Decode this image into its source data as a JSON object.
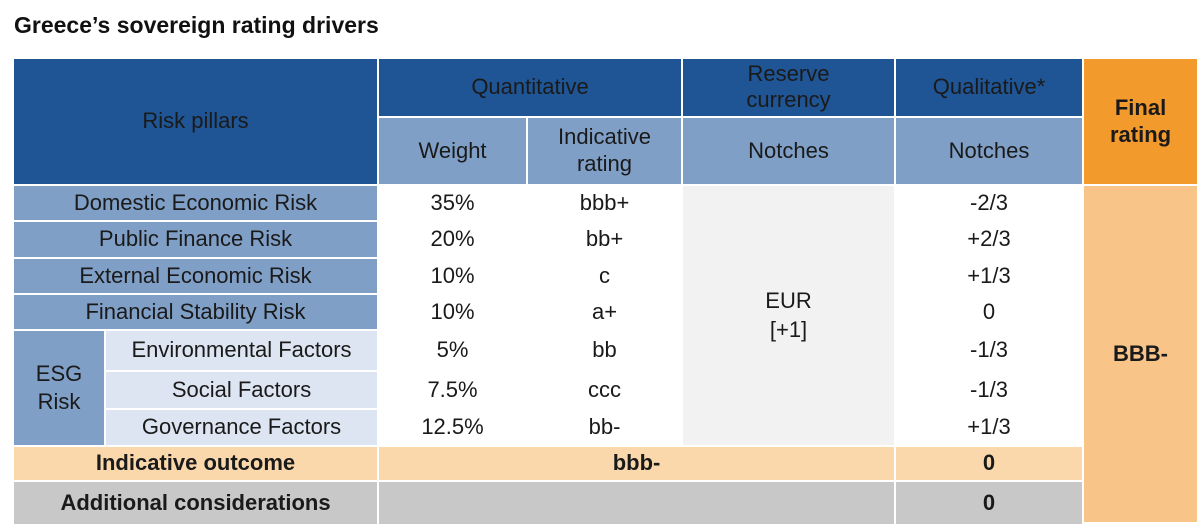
{
  "title": "Greece’s sovereign rating drivers",
  "header": {
    "risk_pillars": "Risk pillars",
    "quantitative": "Quantitative",
    "reserve_currency": "Reserve currency",
    "qualitative": "Qualitative*",
    "final_rating": "Final rating",
    "weight": "Weight",
    "indicative_rating": "Indicative rating",
    "notches_reserve": "Notches",
    "notches_qualitative": "Notches"
  },
  "rows": [
    {
      "pillar": "Domestic Economic Risk",
      "weight": "35%",
      "rating": "bbb+",
      "qual": "-2/3"
    },
    {
      "pillar": "Public Finance Risk",
      "weight": "20%",
      "rating": "bb+",
      "qual": "+2/3"
    },
    {
      "pillar": "External Economic Risk",
      "weight": "10%",
      "rating": "c",
      "qual": "+1/3"
    },
    {
      "pillar": "Financial Stability Risk",
      "weight": "10%",
      "rating": "a+",
      "qual": "0"
    }
  ],
  "esg": {
    "label": "ESG Risk",
    "rows": [
      {
        "factor": "Environmental Factors",
        "weight": "5%",
        "rating": "bb",
        "qual": "-1/3"
      },
      {
        "factor": "Social Factors",
        "weight": "7.5%",
        "rating": "ccc",
        "qual": "-1/3"
      },
      {
        "factor": "Governance Factors",
        "weight": "12.5%",
        "rating": "bb-",
        "qual": "+1/3"
      }
    ]
  },
  "reserve_value": "EUR [+1]",
  "final_rating_value": "BBB-",
  "indicative_outcome": {
    "label": "Indicative outcome",
    "value": "bbb-",
    "qual": "0"
  },
  "additional_considerations": {
    "label": "Additional considerations",
    "qual": "0"
  },
  "colors": {
    "header_dark": "#1f5594",
    "header_mid": "#7f9fc6",
    "final_header": "#f39a2c",
    "final_value": "#f9c488",
    "indicative_row": "#fbd8ac",
    "additional_row": "#c8c8c8"
  }
}
